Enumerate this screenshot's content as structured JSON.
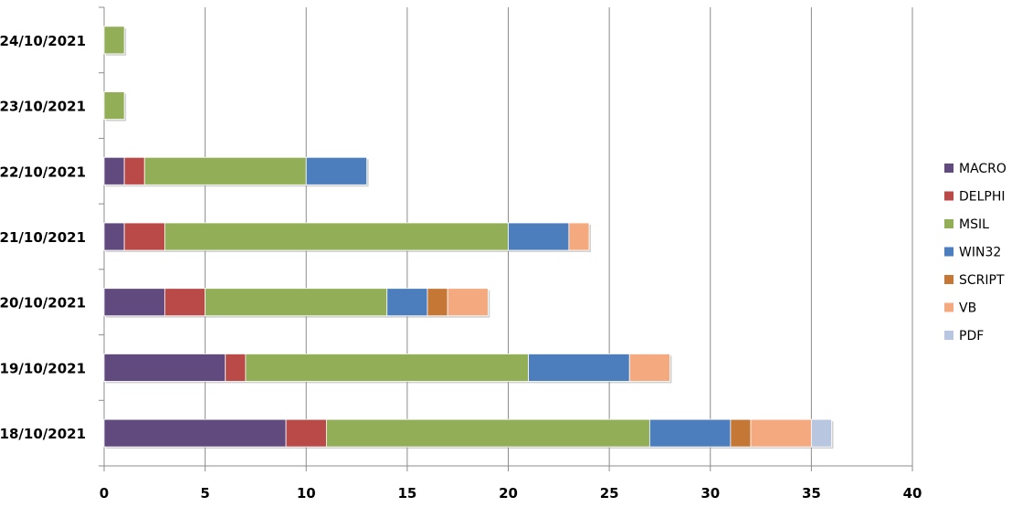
{
  "chart_data": {
    "type": "bar",
    "orientation": "horizontal",
    "stacked": true,
    "categories": [
      "18/10/2021",
      "19/10/2021",
      "20/10/2021",
      "21/10/2021",
      "22/10/2021",
      "23/10/2021",
      "24/10/2021"
    ],
    "series": [
      {
        "name": "MACRO",
        "color": "#614a7d",
        "values": [
          9,
          6,
          3,
          1,
          1,
          0,
          0
        ]
      },
      {
        "name": "DELPHI",
        "color": "#b94a48",
        "values": [
          2,
          1,
          2,
          2,
          1,
          0,
          0
        ]
      },
      {
        "name": "MSIL",
        "color": "#92ae56",
        "values": [
          16,
          14,
          9,
          17,
          8,
          1,
          1
        ]
      },
      {
        "name": "WIN32",
        "color": "#4c7dbd",
        "values": [
          4,
          5,
          2,
          3,
          3,
          0,
          0
        ]
      },
      {
        "name": "SCRIPT",
        "color": "#c57735",
        "values": [
          1,
          0,
          1,
          0,
          0,
          0,
          0
        ]
      },
      {
        "name": "VB",
        "color": "#f5a97e",
        "values": [
          3,
          2,
          2,
          1,
          0,
          0,
          0
        ]
      },
      {
        "name": "PDF",
        "color": "#b8c6e0",
        "values": [
          1,
          0,
          0,
          0,
          0,
          0,
          0
        ]
      }
    ],
    "xlim": [
      0,
      40
    ],
    "xticks": [
      "0",
      "5",
      "10",
      "15",
      "20",
      "25",
      "30",
      "35",
      "40"
    ],
    "grid": "vertical",
    "legend": "right",
    "title": "",
    "xlabel": "",
    "ylabel": ""
  }
}
